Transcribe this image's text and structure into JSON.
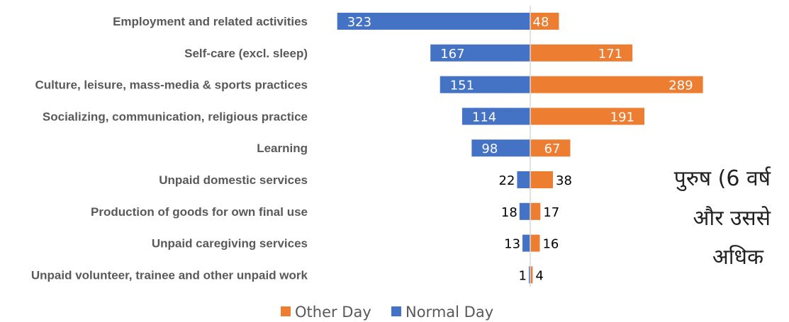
{
  "chart_data": {
    "type": "bar",
    "orientation": "horizontal-diverging",
    "categories": [
      "Employment and related activities",
      "Self-care (excl. sleep)",
      "Culture, leisure, mass-media & sports practices",
      "Socializing, communication, religious practice",
      "Learning",
      "Unpaid domestic services",
      "Production of goods for own final use",
      "Unpaid caregiving services",
      "Unpaid volunteer, trainee and other unpaid work"
    ],
    "series": [
      {
        "name": "Other Day",
        "color": "#ED7D31",
        "values": [
          48,
          171,
          289,
          191,
          67,
          38,
          17,
          16,
          4
        ]
      },
      {
        "name": "Normal Day",
        "color": "#4472C4",
        "values": [
          323,
          167,
          151,
          114,
          98,
          22,
          18,
          13,
          1
        ]
      }
    ],
    "legend_order": [
      "Other Day",
      "Normal Day"
    ],
    "legend_position": "bottom",
    "annotation": [
      "पुरुष (6 वर्ष",
      "और उससे",
      "अधिक"
    ],
    "grid": false
  }
}
